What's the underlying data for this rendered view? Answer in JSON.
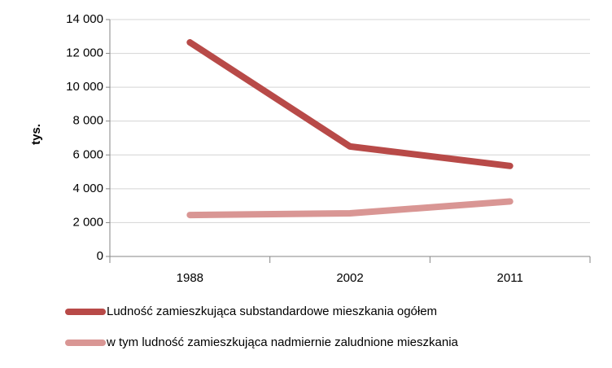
{
  "chart_data": {
    "type": "line",
    "y_label": "tys.",
    "categories": [
      "1988",
      "2002",
      "2011"
    ],
    "series": [
      {
        "name": "Ludność zamieszkująca substandardowe mieszkania ogółem",
        "color": "#b84a48",
        "values": [
          12650,
          6500,
          5350
        ]
      },
      {
        "name": "w tym ludność zamieszkująca nadmiernie zaludnione mieszkania",
        "color": "#d99694",
        "values": [
          2450,
          2550,
          3250
        ]
      }
    ],
    "ylim": [
      0,
      14000
    ],
    "yticks": [
      0,
      {
        "value": 2000,
        "label": "2 000"
      },
      {
        "value": 4000,
        "label": "4 000"
      },
      {
        "value": 6000,
        "label": "6 000"
      },
      {
        "value": 8000,
        "label": "8 000"
      },
      {
        "value": 10000,
        "label": "10 000"
      },
      {
        "value": 12000,
        "label": "12 000"
      },
      {
        "value": 14000,
        "label": "14 000"
      }
    ],
    "grid": true
  }
}
